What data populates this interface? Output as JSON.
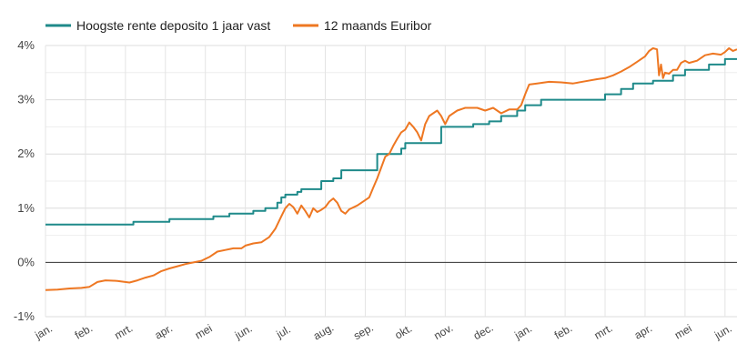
{
  "chart_data": {
    "type": "line",
    "x_unit": "month",
    "xlim": [
      0,
      17.3
    ],
    "ylim": [
      -1,
      4
    ],
    "y_tick_values": [
      -1,
      0,
      1,
      2,
      3,
      4
    ],
    "y_tick_labels": [
      "-1%",
      "0%",
      "1%",
      "2%",
      "3%",
      "4%"
    ],
    "x_tick_labels": [
      "jan.",
      "feb.",
      "mrt.",
      "apr.",
      "mei",
      "jun.",
      "jul.",
      "aug.",
      "sep.",
      "okt.",
      "nov.",
      "dec.",
      "jan.",
      "feb.",
      "mrt.",
      "apr.",
      "mei",
      "jun."
    ],
    "grid": true,
    "zero_line": true,
    "legend_position": "top-left",
    "series": [
      {
        "name": "Hoogste rente deposito 1 jaar vast",
        "color": "#1f8a8a",
        "step": true,
        "points": [
          [
            0.0,
            0.7
          ],
          [
            2.1,
            0.7
          ],
          [
            2.2,
            0.75
          ],
          [
            3.0,
            0.75
          ],
          [
            3.1,
            0.8
          ],
          [
            4.0,
            0.8
          ],
          [
            4.2,
            0.85
          ],
          [
            4.5,
            0.85
          ],
          [
            4.6,
            0.9
          ],
          [
            5.1,
            0.9
          ],
          [
            5.2,
            0.95
          ],
          [
            5.4,
            0.95
          ],
          [
            5.5,
            1.0
          ],
          [
            5.7,
            1.0
          ],
          [
            5.8,
            1.1
          ],
          [
            5.9,
            1.2
          ],
          [
            6.0,
            1.25
          ],
          [
            6.2,
            1.25
          ],
          [
            6.3,
            1.3
          ],
          [
            6.4,
            1.35
          ],
          [
            6.8,
            1.35
          ],
          [
            6.9,
            1.5
          ],
          [
            7.1,
            1.5
          ],
          [
            7.2,
            1.55
          ],
          [
            7.3,
            1.55
          ],
          [
            7.4,
            1.7
          ],
          [
            8.2,
            1.7
          ],
          [
            8.3,
            2.0
          ],
          [
            8.8,
            2.0
          ],
          [
            8.9,
            2.1
          ],
          [
            9.0,
            2.2
          ],
          [
            9.8,
            2.2
          ],
          [
            9.9,
            2.5
          ],
          [
            10.6,
            2.5
          ],
          [
            10.7,
            2.55
          ],
          [
            11.0,
            2.55
          ],
          [
            11.1,
            2.6
          ],
          [
            11.3,
            2.6
          ],
          [
            11.4,
            2.7
          ],
          [
            11.7,
            2.7
          ],
          [
            11.8,
            2.8
          ],
          [
            11.9,
            2.8
          ],
          [
            12.0,
            2.9
          ],
          [
            12.3,
            2.9
          ],
          [
            12.4,
            3.0
          ],
          [
            13.9,
            3.0
          ],
          [
            14.0,
            3.1
          ],
          [
            14.3,
            3.1
          ],
          [
            14.4,
            3.2
          ],
          [
            14.6,
            3.2
          ],
          [
            14.7,
            3.3
          ],
          [
            15.1,
            3.3
          ],
          [
            15.2,
            3.35
          ],
          [
            15.6,
            3.35
          ],
          [
            15.7,
            3.45
          ],
          [
            15.9,
            3.45
          ],
          [
            16.0,
            3.55
          ],
          [
            16.5,
            3.55
          ],
          [
            16.6,
            3.65
          ],
          [
            16.9,
            3.65
          ],
          [
            17.0,
            3.75
          ],
          [
            17.3,
            3.75
          ]
        ]
      },
      {
        "name": "12 maands Euribor",
        "color": "#ee7722",
        "step": false,
        "points": [
          [
            0.0,
            -0.51
          ],
          [
            0.3,
            -0.5
          ],
          [
            0.6,
            -0.48
          ],
          [
            0.9,
            -0.47
          ],
          [
            1.1,
            -0.45
          ],
          [
            1.3,
            -0.36
          ],
          [
            1.5,
            -0.33
          ],
          [
            1.8,
            -0.34
          ],
          [
            2.1,
            -0.37
          ],
          [
            2.3,
            -0.33
          ],
          [
            2.5,
            -0.28
          ],
          [
            2.7,
            -0.24
          ],
          [
            2.9,
            -0.16
          ],
          [
            3.1,
            -0.11
          ],
          [
            3.3,
            -0.07
          ],
          [
            3.5,
            -0.03
          ],
          [
            3.7,
            0.0
          ],
          [
            3.9,
            0.03
          ],
          [
            4.1,
            0.1
          ],
          [
            4.3,
            0.2
          ],
          [
            4.5,
            0.23
          ],
          [
            4.7,
            0.26
          ],
          [
            4.9,
            0.26
          ],
          [
            5.0,
            0.31
          ],
          [
            5.2,
            0.35
          ],
          [
            5.4,
            0.37
          ],
          [
            5.6,
            0.47
          ],
          [
            5.75,
            0.62
          ],
          [
            5.9,
            0.85
          ],
          [
            6.0,
            1.0
          ],
          [
            6.1,
            1.08
          ],
          [
            6.2,
            1.02
          ],
          [
            6.3,
            0.9
          ],
          [
            6.4,
            1.05
          ],
          [
            6.5,
            0.95
          ],
          [
            6.6,
            0.83
          ],
          [
            6.7,
            1.0
          ],
          [
            6.8,
            0.93
          ],
          [
            6.9,
            0.97
          ],
          [
            7.0,
            1.02
          ],
          [
            7.1,
            1.12
          ],
          [
            7.2,
            1.18
          ],
          [
            7.3,
            1.1
          ],
          [
            7.4,
            0.95
          ],
          [
            7.5,
            0.9
          ],
          [
            7.6,
            0.98
          ],
          [
            7.8,
            1.05
          ],
          [
            8.0,
            1.15
          ],
          [
            8.1,
            1.2
          ],
          [
            8.2,
            1.38
          ],
          [
            8.3,
            1.55
          ],
          [
            8.4,
            1.75
          ],
          [
            8.5,
            1.95
          ],
          [
            8.6,
            2.0
          ],
          [
            8.7,
            2.15
          ],
          [
            8.8,
            2.28
          ],
          [
            8.9,
            2.4
          ],
          [
            9.0,
            2.45
          ],
          [
            9.1,
            2.58
          ],
          [
            9.2,
            2.5
          ],
          [
            9.3,
            2.4
          ],
          [
            9.4,
            2.25
          ],
          [
            9.5,
            2.55
          ],
          [
            9.6,
            2.7
          ],
          [
            9.8,
            2.8
          ],
          [
            9.9,
            2.7
          ],
          [
            10.0,
            2.55
          ],
          [
            10.1,
            2.7
          ],
          [
            10.3,
            2.8
          ],
          [
            10.5,
            2.85
          ],
          [
            10.8,
            2.85
          ],
          [
            11.0,
            2.8
          ],
          [
            11.2,
            2.85
          ],
          [
            11.4,
            2.75
          ],
          [
            11.6,
            2.82
          ],
          [
            11.8,
            2.82
          ],
          [
            11.9,
            2.9
          ],
          [
            12.0,
            3.1
          ],
          [
            12.1,
            3.28
          ],
          [
            12.3,
            3.3
          ],
          [
            12.6,
            3.33
          ],
          [
            12.9,
            3.32
          ],
          [
            13.2,
            3.3
          ],
          [
            13.5,
            3.34
          ],
          [
            13.8,
            3.38
          ],
          [
            14.0,
            3.4
          ],
          [
            14.2,
            3.45
          ],
          [
            14.4,
            3.52
          ],
          [
            14.6,
            3.6
          ],
          [
            14.8,
            3.7
          ],
          [
            15.0,
            3.8
          ],
          [
            15.1,
            3.9
          ],
          [
            15.2,
            3.95
          ],
          [
            15.3,
            3.93
          ],
          [
            15.35,
            3.45
          ],
          [
            15.4,
            3.65
          ],
          [
            15.45,
            3.4
          ],
          [
            15.5,
            3.5
          ],
          [
            15.6,
            3.48
          ],
          [
            15.7,
            3.55
          ],
          [
            15.8,
            3.55
          ],
          [
            15.9,
            3.68
          ],
          [
            16.0,
            3.72
          ],
          [
            16.1,
            3.68
          ],
          [
            16.3,
            3.72
          ],
          [
            16.5,
            3.82
          ],
          [
            16.7,
            3.85
          ],
          [
            16.9,
            3.83
          ],
          [
            17.0,
            3.88
          ],
          [
            17.1,
            3.95
          ],
          [
            17.2,
            3.9
          ],
          [
            17.3,
            3.93
          ]
        ]
      }
    ]
  }
}
